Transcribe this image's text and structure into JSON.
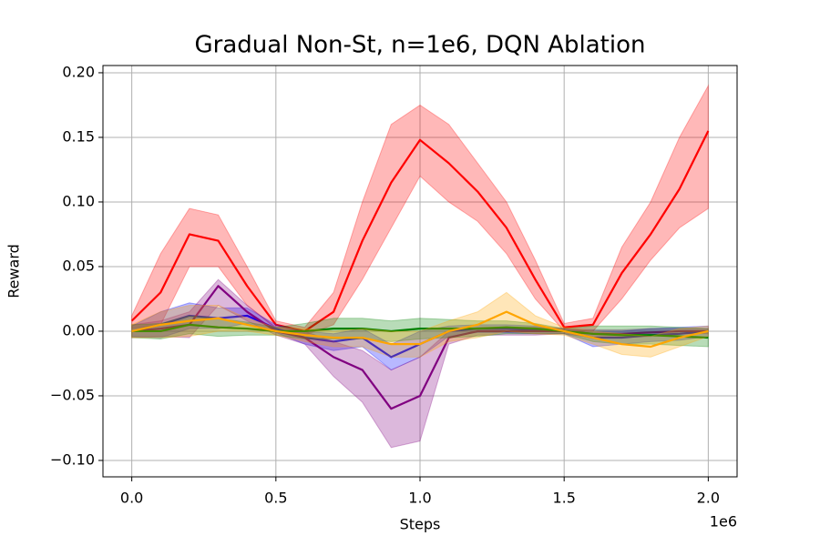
{
  "chart_data": {
    "type": "line",
    "title": "Gradual Non-St, n=1e6, DQN Ablation",
    "x_label": "Steps",
    "y_label": "Reward",
    "x_offset_label": "1e6",
    "x": [
      0,
      0.1,
      0.2,
      0.3,
      0.4,
      0.5,
      0.6,
      0.7,
      0.8,
      0.9,
      1.0,
      1.1,
      1.2,
      1.3,
      1.4,
      1.5,
      1.6,
      1.7,
      1.8,
      1.9,
      2.0
    ],
    "xlim": [
      -0.1,
      2.1
    ],
    "xticks": [
      {
        "value": 0,
        "label": "0.0"
      },
      0.5,
      {
        "value": 1,
        "label": "1.0"
      },
      1.5,
      {
        "value": 2,
        "label": "2.0"
      }
    ],
    "ylim": [
      -0.1127,
      0.2056
    ],
    "yticks": [
      {
        "value": -0.1,
        "label": "−0.10"
      },
      {
        "value": -0.05,
        "label": "−0.05"
      },
      {
        "value": 0,
        "label": "0.00"
      },
      0.05,
      {
        "value": 0.1,
        "label": "0.10"
      },
      0.15,
      {
        "value": 0.2,
        "label": "0.20"
      }
    ],
    "grid": true,
    "series": [
      {
        "color": "red",
        "values": [
          0.008,
          0.03,
          0.075,
          0.07,
          0.035,
          0.005,
          0.0,
          0.015,
          0.07,
          0.115,
          0.148,
          0.13,
          0.108,
          0.08,
          0.04,
          0.003,
          0.005,
          0.045,
          0.075,
          0.11,
          0.155
        ],
        "upper": [
          0.012,
          0.06,
          0.095,
          0.09,
          0.05,
          0.008,
          0.003,
          0.03,
          0.1,
          0.16,
          0.175,
          0.16,
          0.13,
          0.1,
          0.055,
          0.006,
          0.01,
          0.065,
          0.1,
          0.15,
          0.19
        ],
        "lower": [
          0.002,
          0.005,
          0.05,
          0.05,
          0.02,
          0.002,
          -0.003,
          0.005,
          0.04,
          0.08,
          0.12,
          0.1,
          0.085,
          0.06,
          0.025,
          0.0,
          0.0,
          0.025,
          0.055,
          0.08,
          0.095
        ]
      },
      {
        "color": "blue",
        "values": [
          0.0,
          0.005,
          0.012,
          0.01,
          0.012,
          0.002,
          -0.005,
          -0.008,
          -0.005,
          -0.02,
          -0.01,
          0.0,
          0.002,
          0.002,
          0.001,
          0.0,
          -0.005,
          -0.005,
          -0.003,
          -0.002,
          0.0
        ],
        "upper": [
          0.004,
          0.015,
          0.022,
          0.018,
          0.018,
          0.005,
          0.0,
          -0.002,
          0.002,
          -0.01,
          0.0,
          0.004,
          0.005,
          0.005,
          0.004,
          0.002,
          0.0,
          0.0,
          0.002,
          0.003,
          0.004
        ],
        "lower": [
          -0.004,
          -0.005,
          0.002,
          0.002,
          0.006,
          -0.001,
          -0.01,
          -0.015,
          -0.012,
          -0.03,
          -0.02,
          -0.004,
          -0.001,
          -0.001,
          -0.002,
          -0.002,
          -0.012,
          -0.01,
          -0.008,
          -0.007,
          -0.004
        ]
      },
      {
        "color": "purple",
        "values": [
          0.0,
          0.002,
          0.005,
          0.035,
          0.015,
          0.0,
          -0.005,
          -0.02,
          -0.03,
          -0.06,
          -0.05,
          -0.005,
          0.0,
          0.0,
          0.0,
          0.0,
          -0.002,
          -0.002,
          -0.001,
          0.0,
          0.0
        ],
        "upper": [
          0.005,
          0.008,
          0.015,
          0.04,
          0.02,
          0.003,
          0.0,
          -0.008,
          -0.015,
          -0.03,
          -0.02,
          0.0,
          0.003,
          0.003,
          0.003,
          0.002,
          0.001,
          0.001,
          0.002,
          0.002,
          0.002
        ],
        "lower": [
          -0.005,
          -0.004,
          -0.005,
          0.02,
          0.008,
          -0.003,
          -0.01,
          -0.035,
          -0.055,
          -0.09,
          -0.085,
          -0.01,
          -0.003,
          -0.003,
          -0.003,
          -0.002,
          -0.005,
          -0.005,
          -0.004,
          -0.002,
          -0.002
        ]
      },
      {
        "color": "green",
        "values": [
          0.0,
          0.0,
          0.005,
          0.003,
          0.002,
          0.0,
          0.0,
          0.002,
          0.002,
          0.0,
          0.002,
          0.002,
          0.002,
          0.003,
          0.002,
          0.0,
          -0.002,
          -0.003,
          -0.003,
          -0.004,
          -0.005
        ],
        "upper": [
          0.005,
          0.006,
          0.012,
          0.01,
          0.007,
          0.003,
          0.006,
          0.01,
          0.01,
          0.008,
          0.01,
          0.009,
          0.008,
          0.008,
          0.006,
          0.002,
          0.004,
          0.004,
          0.004,
          0.003,
          0.002
        ],
        "lower": [
          -0.005,
          -0.006,
          -0.002,
          -0.004,
          -0.003,
          -0.003,
          -0.006,
          -0.006,
          -0.006,
          -0.008,
          -0.006,
          -0.005,
          -0.004,
          -0.002,
          -0.002,
          -0.002,
          -0.008,
          -0.01,
          -0.01,
          -0.011,
          -0.012
        ]
      },
      {
        "color": "orange",
        "values": [
          0.0,
          0.005,
          0.008,
          0.01,
          0.005,
          0.0,
          -0.003,
          -0.005,
          -0.005,
          -0.01,
          -0.01,
          0.0,
          0.005,
          0.015,
          0.005,
          0.0,
          -0.005,
          -0.01,
          -0.012,
          -0.005,
          0.0
        ],
        "upper": [
          0.005,
          0.015,
          0.02,
          0.02,
          0.01,
          0.003,
          0.002,
          0.0,
          0.002,
          0.0,
          0.0,
          0.008,
          0.015,
          0.03,
          0.012,
          0.003,
          0.0,
          -0.002,
          -0.004,
          0.002,
          0.004
        ],
        "lower": [
          -0.005,
          -0.005,
          -0.004,
          0.0,
          0.0,
          -0.003,
          -0.008,
          -0.012,
          -0.012,
          -0.02,
          -0.02,
          -0.008,
          -0.005,
          0.0,
          -0.002,
          -0.003,
          -0.01,
          -0.018,
          -0.02,
          -0.012,
          -0.004
        ]
      }
    ]
  }
}
